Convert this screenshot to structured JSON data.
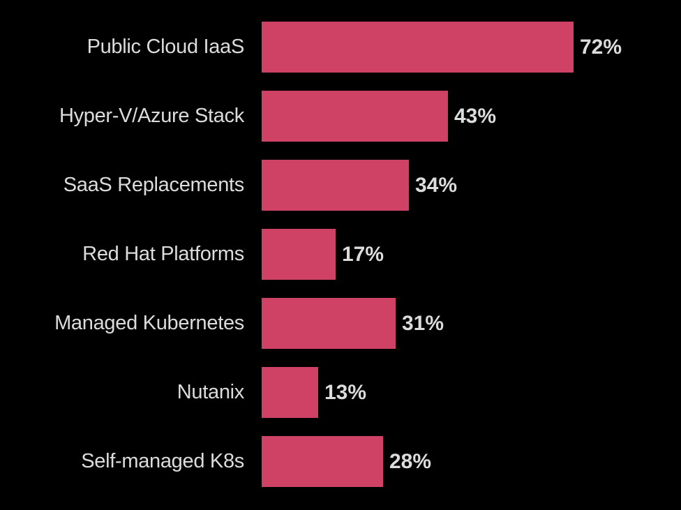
{
  "chart_data": {
    "type": "bar",
    "orientation": "horizontal",
    "title": "",
    "xlabel": "",
    "ylabel": "",
    "xlim": [
      0,
      100
    ],
    "grid": false,
    "legend": null,
    "categories": [
      "Public Cloud IaaS",
      "Hyper-V/Azure Stack",
      "SaaS Replacements",
      "Red Hat Platforms",
      "Managed Kubernetes",
      "Nutanix",
      "Self-managed K8s"
    ],
    "values": [
      72,
      43,
      34,
      17,
      31,
      13,
      28
    ],
    "value_labels": [
      "72%",
      "43%",
      "34%",
      "17%",
      "31%",
      "13%",
      "28%"
    ],
    "unit": "%"
  },
  "colors": {
    "background": "#000000",
    "bar": "#cf4266",
    "text": "#dcdcdc"
  }
}
